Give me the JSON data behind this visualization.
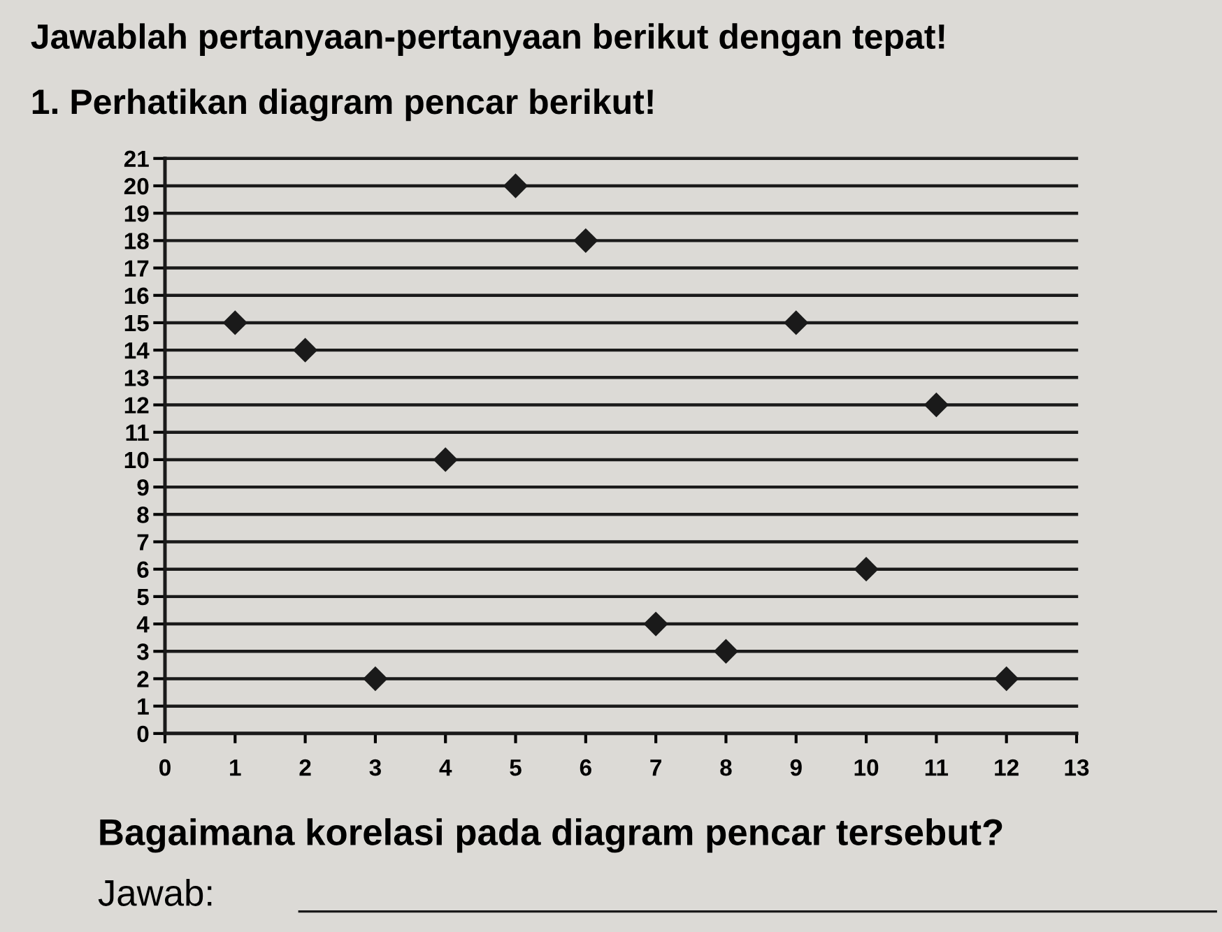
{
  "chart_data": {
    "type": "scatter",
    "title": "Jawablah pertanyaan-pertanyaan berikut dengan tepat!",
    "subtitle": "1. Perhatikan diagram pencar berikut!",
    "x": [
      1,
      2,
      3,
      4,
      5,
      6,
      7,
      8,
      9,
      10,
      11,
      12
    ],
    "values": [
      15,
      14,
      2,
      10,
      20,
      18,
      4,
      3,
      15,
      6,
      12,
      2
    ],
    "color": "#1a1a1a",
    "marker": "diamond",
    "xlim": [
      0,
      13
    ],
    "xticks": [
      0,
      1,
      2,
      3,
      4,
      5,
      6,
      7,
      8,
      9,
      10,
      11,
      12,
      13
    ],
    "ylim": [
      0,
      21
    ],
    "yticks": [
      0,
      1,
      2,
      3,
      4,
      5,
      6,
      7,
      8,
      9,
      10,
      11,
      12,
      13,
      14,
      15,
      16,
      17,
      18,
      19,
      20,
      21
    ],
    "grid": "y",
    "annotations": [
      "Bagaimana korelasi pada diagram pencar tersebut?",
      "Jawab:"
    ]
  }
}
